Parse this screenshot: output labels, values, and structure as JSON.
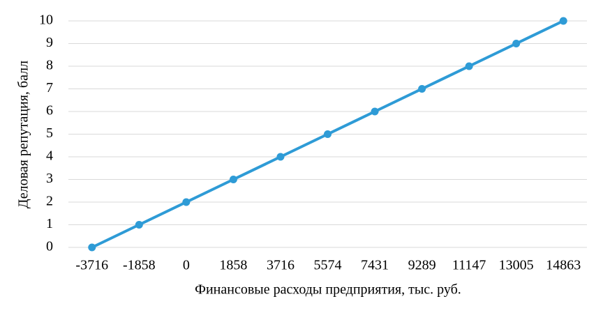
{
  "chart_data": {
    "type": "line",
    "x_label": "Финансовые расходы предприятия, тыс. руб.",
    "y_label": "Деловая репутация, балл",
    "categories": [
      "-3716",
      "-1858",
      "0",
      "1858",
      "3716",
      "5574",
      "7431",
      "9289",
      "11147",
      "13005",
      "14863"
    ],
    "values": [
      0,
      1,
      2,
      3,
      4,
      5,
      6,
      7,
      8,
      9,
      10
    ],
    "color": "#2e9bd6",
    "ylim": [
      0,
      10
    ],
    "yticks": [
      0,
      1,
      2,
      3,
      4,
      5,
      6,
      7,
      8,
      9,
      10
    ],
    "grid": true
  }
}
